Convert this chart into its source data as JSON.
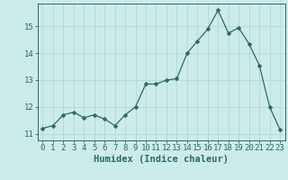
{
  "x": [
    0,
    1,
    2,
    3,
    4,
    5,
    6,
    7,
    8,
    9,
    10,
    11,
    12,
    13,
    14,
    15,
    16,
    17,
    18,
    19,
    20,
    21,
    22,
    23
  ],
  "y": [
    11.2,
    11.3,
    11.7,
    11.8,
    11.6,
    11.7,
    11.55,
    11.3,
    11.7,
    12.0,
    12.85,
    12.85,
    13.0,
    13.05,
    14.0,
    14.45,
    14.9,
    15.6,
    14.75,
    14.95,
    14.35,
    13.55,
    12.0,
    11.15
  ],
  "line_color": "#2a6b5e",
  "marker": "D",
  "marker_size": 2.5,
  "bg_color": "#ccecea",
  "grid_color": "#b2d8d5",
  "xlabel": "Humidex (Indice chaleur)",
  "xlabel_fontsize": 7.5,
  "ylabel_ticks": [
    11,
    12,
    13,
    14,
    15
  ],
  "xlim": [
    -0.5,
    23.5
  ],
  "ylim": [
    10.75,
    15.85
  ],
  "tick_fontsize": 6.5,
  "axis_color": "#2a6b5e"
}
